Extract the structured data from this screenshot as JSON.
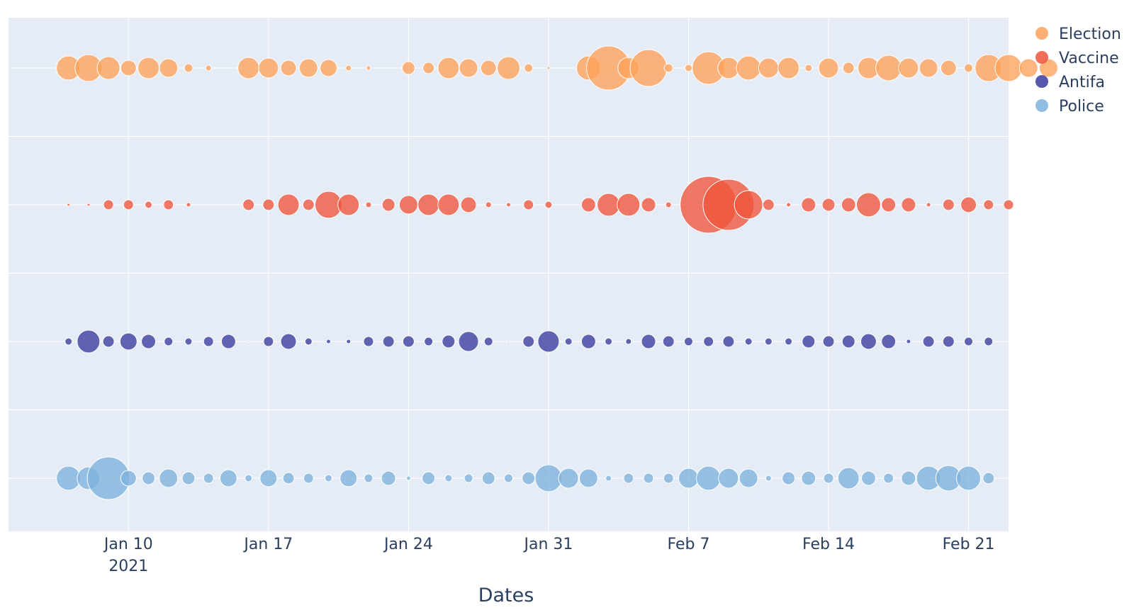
{
  "chart_data": {
    "type": "scatter",
    "subtype": "bubble",
    "title": "",
    "xlabel": "Dates",
    "ylabel": "",
    "x_start": "2021-01-07",
    "x_range": [
      "2021-01-04",
      "2021-02-23"
    ],
    "x_ticks": [
      {
        "date": "2021-01-10",
        "label": "Jan 10",
        "sublabel": "2021"
      },
      {
        "date": "2021-01-17",
        "label": "Jan 17",
        "sublabel": ""
      },
      {
        "date": "2021-01-24",
        "label": "Jan 24",
        "sublabel": ""
      },
      {
        "date": "2021-01-31",
        "label": "Jan 31",
        "sublabel": ""
      },
      {
        "date": "2021-02-07",
        "label": "Feb 7",
        "sublabel": ""
      },
      {
        "date": "2021-02-14",
        "label": "Feb 14",
        "sublabel": ""
      },
      {
        "date": "2021-02-21",
        "label": "Feb 21",
        "sublabel": ""
      }
    ],
    "grid": true,
    "legend_position": "top-right",
    "colors": {
      "plot_background": "#E5ECF6",
      "grid": "#ffffff",
      "text": "#2a3f5f"
    },
    "series": [
      {
        "name": "Election",
        "color": "#FFA15A",
        "sizes": [
          17,
          19,
          16,
          11,
          15,
          13,
          6,
          4,
          0,
          15,
          14,
          11,
          13,
          12,
          4,
          3,
          0,
          9,
          8,
          15,
          13,
          11,
          16,
          6,
          2,
          0,
          17,
          31,
          15,
          26,
          6,
          5,
          23,
          15,
          17,
          14,
          15,
          5,
          14,
          8,
          15,
          18,
          14,
          13,
          11,
          6,
          19,
          19,
          13,
          13
        ]
      },
      {
        "name": "Vaccine",
        "color": "#EF553B",
        "sizes": [
          2,
          2,
          7,
          7,
          5,
          7,
          3,
          0,
          0,
          8,
          8,
          15,
          8,
          19,
          15,
          4,
          9,
          13,
          15,
          15,
          11,
          4,
          3,
          7,
          5,
          0,
          10,
          16,
          16,
          10,
          4,
          0,
          40,
          36,
          20,
          8,
          3,
          10,
          9,
          10,
          17,
          10,
          10,
          3,
          8,
          11,
          7,
          7,
          0,
          0
        ]
      },
      {
        "name": "Antifa",
        "color": "#3A3A9E",
        "sizes": [
          5,
          16,
          8,
          12,
          10,
          6,
          5,
          7,
          10,
          1,
          7,
          11,
          5,
          3,
          3,
          7,
          8,
          8,
          6,
          9,
          14,
          6,
          1,
          8,
          15,
          5,
          10,
          5,
          4,
          10,
          8,
          6,
          7,
          8,
          5,
          5,
          5,
          9,
          8,
          9,
          11,
          10,
          3,
          8,
          8,
          6,
          6,
          0,
          0,
          0
        ]
      },
      {
        "name": "Police",
        "color": "#7FB2DD",
        "sizes": [
          17,
          16,
          30,
          11,
          9,
          13,
          9,
          7,
          12,
          5,
          12,
          8,
          7,
          5,
          12,
          6,
          10,
          3,
          9,
          5,
          6,
          9,
          6,
          9,
          19,
          14,
          13,
          4,
          7,
          7,
          7,
          14,
          17,
          14,
          13,
          4,
          9,
          10,
          7,
          15,
          10,
          7,
          10,
          17,
          18,
          17,
          8,
          0,
          0,
          0
        ]
      }
    ]
  }
}
